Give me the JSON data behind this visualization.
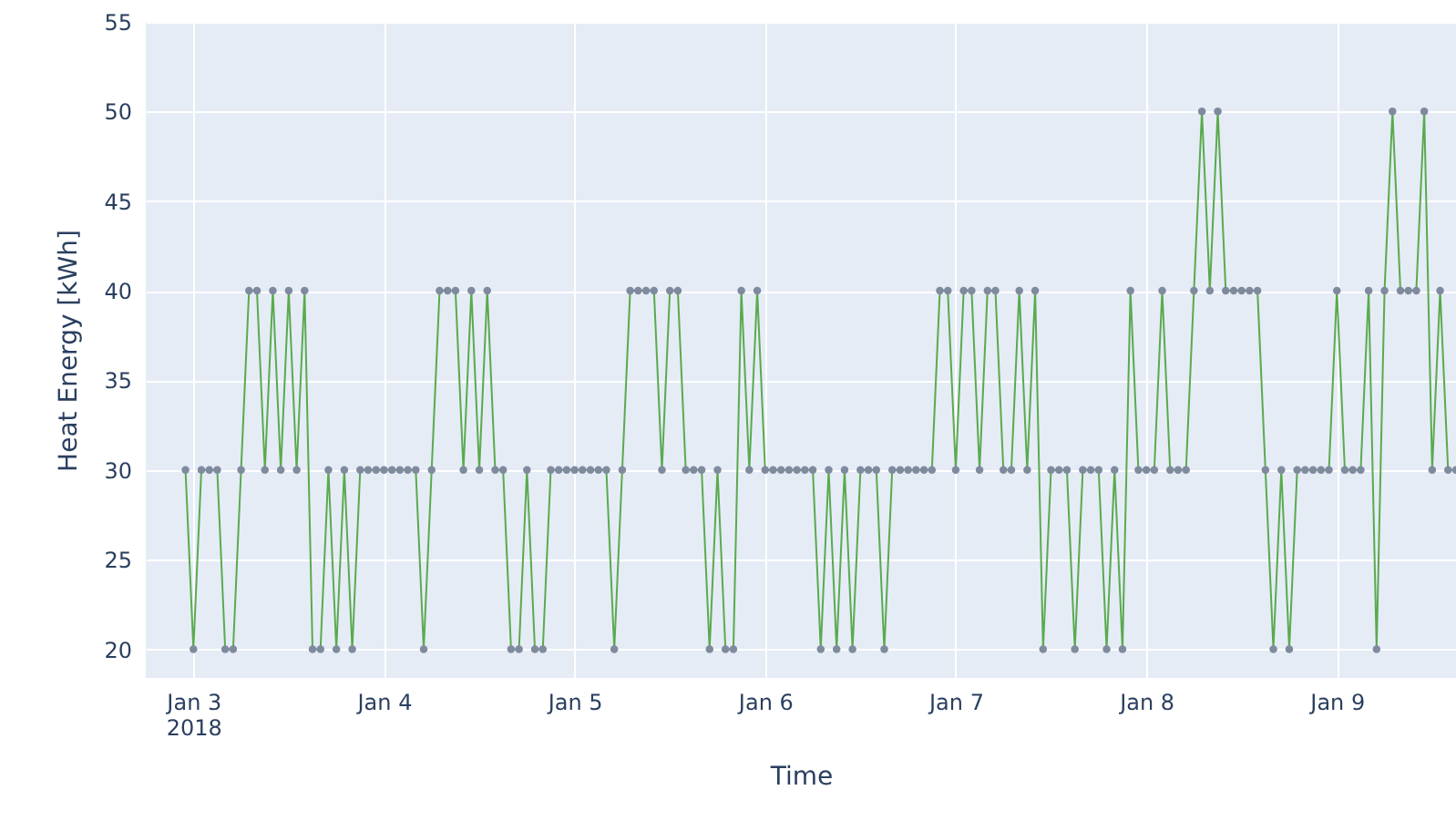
{
  "chart_data": {
    "type": "line",
    "xlabel": "Time",
    "ylabel": "Heat Energy [kWh]",
    "x": [
      "2018-01-02T23:00",
      "2018-01-03T00:00",
      "2018-01-03T01:00",
      "2018-01-03T02:00",
      "2018-01-03T03:00",
      "2018-01-03T04:00",
      "2018-01-03T05:00",
      "2018-01-03T06:00",
      "2018-01-03T07:00",
      "2018-01-03T08:00",
      "2018-01-03T09:00",
      "2018-01-03T10:00",
      "2018-01-03T11:00",
      "2018-01-03T12:00",
      "2018-01-03T13:00",
      "2018-01-03T14:00",
      "2018-01-03T15:00",
      "2018-01-03T16:00",
      "2018-01-03T17:00",
      "2018-01-03T18:00",
      "2018-01-03T19:00",
      "2018-01-03T20:00",
      "2018-01-03T21:00",
      "2018-01-03T22:00",
      "2018-01-03T23:00",
      "2018-01-04T00:00",
      "2018-01-04T01:00",
      "2018-01-04T02:00",
      "2018-01-04T03:00",
      "2018-01-04T04:00",
      "2018-01-04T05:00",
      "2018-01-04T06:00",
      "2018-01-04T07:00",
      "2018-01-04T08:00",
      "2018-01-04T09:00",
      "2018-01-04T10:00",
      "2018-01-04T11:00",
      "2018-01-04T12:00",
      "2018-01-04T13:00",
      "2018-01-04T14:00",
      "2018-01-04T15:00",
      "2018-01-04T16:00",
      "2018-01-04T17:00",
      "2018-01-04T18:00",
      "2018-01-04T19:00",
      "2018-01-04T20:00",
      "2018-01-04T21:00",
      "2018-01-04T22:00",
      "2018-01-04T23:00",
      "2018-01-05T00:00",
      "2018-01-05T01:00",
      "2018-01-05T02:00",
      "2018-01-05T03:00",
      "2018-01-05T04:00",
      "2018-01-05T05:00",
      "2018-01-05T06:00",
      "2018-01-05T07:00",
      "2018-01-05T08:00",
      "2018-01-05T09:00",
      "2018-01-05T10:00",
      "2018-01-05T11:00",
      "2018-01-05T12:00",
      "2018-01-05T13:00",
      "2018-01-05T14:00",
      "2018-01-05T15:00",
      "2018-01-05T16:00",
      "2018-01-05T17:00",
      "2018-01-05T18:00",
      "2018-01-05T19:00",
      "2018-01-05T20:00",
      "2018-01-05T21:00",
      "2018-01-05T22:00",
      "2018-01-05T23:00",
      "2018-01-06T00:00",
      "2018-01-06T01:00",
      "2018-01-06T02:00",
      "2018-01-06T03:00",
      "2018-01-06T04:00",
      "2018-01-06T05:00",
      "2018-01-06T06:00",
      "2018-01-06T07:00",
      "2018-01-06T08:00",
      "2018-01-06T09:00",
      "2018-01-06T10:00",
      "2018-01-06T11:00",
      "2018-01-06T12:00",
      "2018-01-06T13:00",
      "2018-01-06T14:00",
      "2018-01-06T15:00",
      "2018-01-06T16:00",
      "2018-01-06T17:00",
      "2018-01-06T18:00",
      "2018-01-06T19:00",
      "2018-01-06T20:00",
      "2018-01-06T21:00",
      "2018-01-06T22:00",
      "2018-01-06T23:00",
      "2018-01-07T00:00",
      "2018-01-07T01:00",
      "2018-01-07T02:00",
      "2018-01-07T03:00",
      "2018-01-07T04:00",
      "2018-01-07T05:00",
      "2018-01-07T06:00",
      "2018-01-07T07:00",
      "2018-01-07T08:00",
      "2018-01-07T09:00",
      "2018-01-07T10:00",
      "2018-01-07T11:00",
      "2018-01-07T12:00",
      "2018-01-07T13:00",
      "2018-01-07T14:00",
      "2018-01-07T15:00",
      "2018-01-07T16:00",
      "2018-01-07T17:00",
      "2018-01-07T18:00",
      "2018-01-07T19:00",
      "2018-01-07T20:00",
      "2018-01-07T21:00",
      "2018-01-07T22:00",
      "2018-01-07T23:00",
      "2018-01-08T00:00",
      "2018-01-08T01:00",
      "2018-01-08T02:00",
      "2018-01-08T03:00",
      "2018-01-08T04:00",
      "2018-01-08T05:00",
      "2018-01-08T06:00",
      "2018-01-08T07:00",
      "2018-01-08T08:00",
      "2018-01-08T09:00",
      "2018-01-08T10:00",
      "2018-01-08T11:00",
      "2018-01-08T12:00",
      "2018-01-08T13:00",
      "2018-01-08T14:00",
      "2018-01-08T15:00",
      "2018-01-08T16:00",
      "2018-01-08T17:00",
      "2018-01-08T18:00",
      "2018-01-08T19:00",
      "2018-01-08T20:00",
      "2018-01-08T21:00",
      "2018-01-08T22:00",
      "2018-01-08T23:00",
      "2018-01-09T00:00",
      "2018-01-09T01:00",
      "2018-01-09T02:00",
      "2018-01-09T03:00",
      "2018-01-09T04:00",
      "2018-01-09T05:00",
      "2018-01-09T06:00",
      "2018-01-09T07:00",
      "2018-01-09T08:00",
      "2018-01-09T09:00",
      "2018-01-09T10:00",
      "2018-01-09T11:00",
      "2018-01-09T12:00",
      "2018-01-09T13:00",
      "2018-01-09T14:00",
      "2018-01-09T15:00"
    ],
    "series": [
      {
        "color": "#5aaa4e",
        "values": [
          30,
          20,
          30,
          30,
          30,
          20,
          20,
          30,
          40,
          40,
          30,
          40,
          30,
          40,
          30,
          40,
          20,
          20,
          30,
          20,
          30,
          20,
          30,
          30,
          30,
          30,
          30,
          30,
          30,
          30,
          20,
          30,
          40,
          40,
          40,
          30,
          40,
          30,
          40,
          30,
          30,
          20,
          20,
          30,
          20,
          20,
          30,
          30,
          30,
          30,
          30,
          30,
          30,
          30,
          20,
          30,
          40,
          40,
          40,
          40,
          30,
          40,
          40,
          30,
          30,
          30,
          20,
          30,
          20,
          20,
          40,
          30,
          40,
          30,
          30,
          30,
          30,
          30,
          30,
          30,
          20,
          30,
          20,
          30,
          20,
          30,
          30,
          30,
          20,
          30,
          30,
          30,
          30,
          30,
          30,
          40,
          40,
          30,
          40,
          40,
          30,
          40,
          40,
          30,
          30,
          40,
          30,
          40,
          20,
          30,
          30,
          30,
          20,
          30,
          30,
          30,
          20,
          30,
          20,
          40,
          30,
          30,
          30,
          40,
          30,
          30,
          30,
          40,
          50,
          40,
          50,
          40,
          40,
          40,
          40,
          40,
          30,
          20,
          30,
          20,
          30,
          30,
          30,
          30,
          30,
          40,
          30,
          30,
          30,
          40,
          20,
          40,
          50,
          40,
          40,
          40,
          50,
          30,
          40,
          30,
          30
        ]
      }
    ],
    "xlim": [
      "2018-01-02T18:00",
      "2018-01-09T15:00"
    ],
    "xticks": [
      {
        "value": "2018-01-03",
        "label": "Jan 3\n2018"
      },
      {
        "value": "2018-01-04",
        "label": "Jan 4"
      },
      {
        "value": "2018-01-05",
        "label": "Jan 5"
      },
      {
        "value": "2018-01-06",
        "label": "Jan 6"
      },
      {
        "value": "2018-01-07",
        "label": "Jan 7"
      },
      {
        "value": "2018-01-08",
        "label": "Jan 8"
      },
      {
        "value": "2018-01-09",
        "label": "Jan 9"
      }
    ],
    "ylim": [
      18.4,
      55
    ],
    "yticks": [
      20,
      25,
      30,
      35,
      40,
      45,
      50,
      55
    ],
    "grid": true,
    "marker": "circle",
    "line_style": "solid"
  }
}
